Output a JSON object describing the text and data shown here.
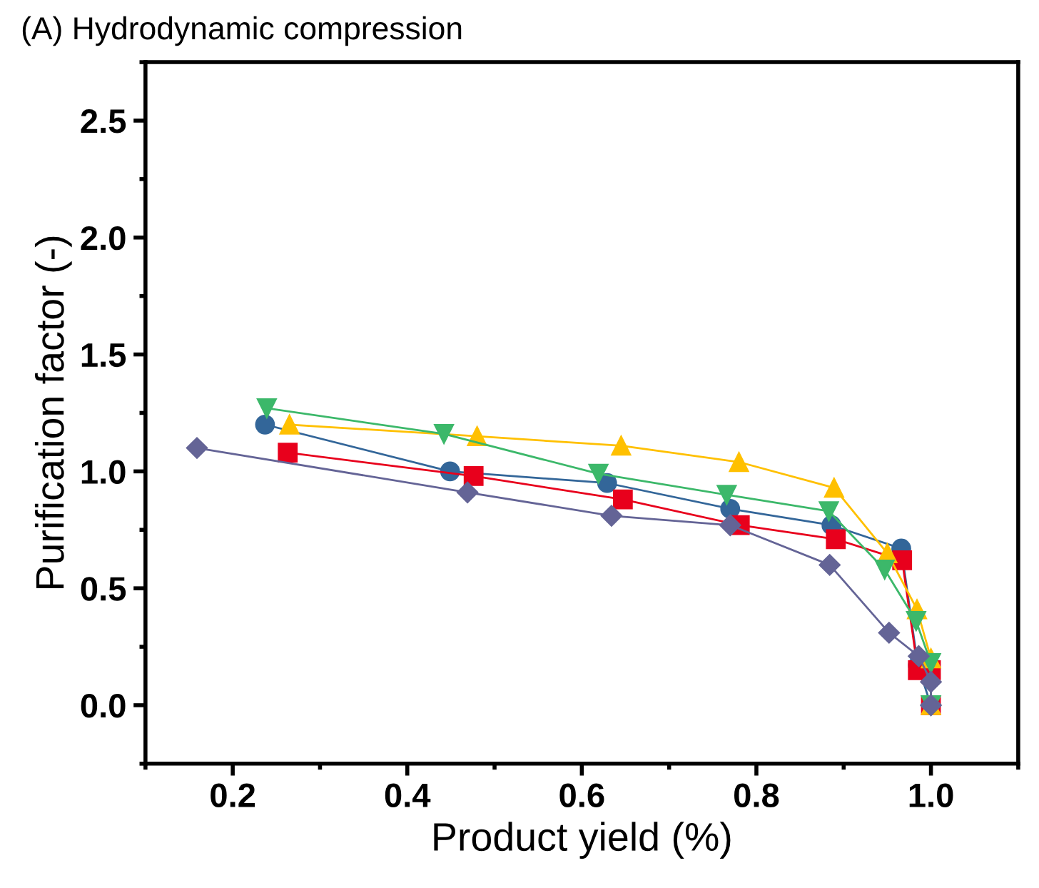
{
  "chart_data": {
    "type": "line",
    "title": "(A) Hydrodynamic compression",
    "xlabel": "Product yield (%)",
    "ylabel": "Purification factor (-)",
    "xlim": [
      0.1,
      1.1
    ],
    "xticks": [
      0.2,
      0.4,
      0.6,
      0.8,
      {
        "value": 1,
        "label": "1.0"
      }
    ],
    "ylim": [
      -0.25,
      2.75
    ],
    "yticks": [
      {
        "value": 0,
        "label": "0.0"
      },
      0.5,
      {
        "value": 1,
        "label": "1.0"
      },
      1.5,
      {
        "value": 2,
        "label": "2.0"
      },
      2.5
    ],
    "grid": false,
    "legend": false,
    "series": [
      {
        "color": "#336699",
        "marker": "circle",
        "x": [
          0.237,
          0.449,
          0.629,
          0.77,
          0.886,
          0.966,
          0.985,
          1.0
        ],
        "values": [
          1.2,
          1.0,
          0.95,
          0.84,
          0.77,
          0.67,
          0.17,
          0.0
        ]
      },
      {
        "color": "#e8001c",
        "marker": "square",
        "x": [
          0.263,
          0.476,
          0.647,
          0.781,
          0.891,
          0.967,
          0.985,
          1.0,
          1.0
        ],
        "values": [
          1.08,
          0.98,
          0.88,
          0.77,
          0.71,
          0.62,
          0.15,
          0.15,
          0.0
        ]
      },
      {
        "color": "#ffc000",
        "marker": "triangle",
        "x": [
          0.265,
          0.48,
          0.645,
          0.78,
          0.889,
          0.95,
          0.984,
          1.0,
          1.0
        ],
        "values": [
          1.2,
          1.15,
          1.11,
          1.04,
          0.93,
          0.65,
          0.41,
          0.2,
          0.0
        ]
      },
      {
        "color": "#3cb86a",
        "marker": "triangle_down",
        "x": [
          0.239,
          0.442,
          0.619,
          0.766,
          0.883,
          0.947,
          0.983,
          1.0,
          1.0
        ],
        "values": [
          1.27,
          1.16,
          0.99,
          0.9,
          0.83,
          0.58,
          0.36,
          0.18,
          0.0
        ]
      },
      {
        "color": "#646496",
        "marker": "diamond",
        "x": [
          0.159,
          0.469,
          0.634,
          0.77,
          0.884,
          0.952,
          0.986,
          1.0,
          1.0
        ],
        "values": [
          1.1,
          0.91,
          0.81,
          0.77,
          0.6,
          0.31,
          0.21,
          0.1,
          0.0
        ]
      }
    ]
  }
}
